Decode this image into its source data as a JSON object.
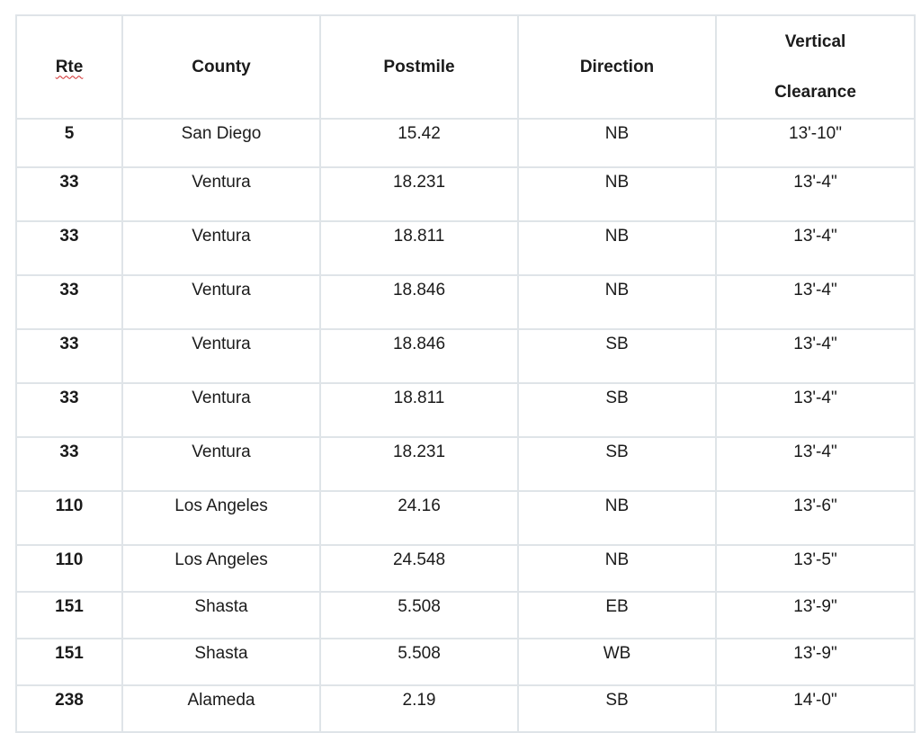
{
  "table": {
    "headers": {
      "rte": "Rte",
      "county": "County",
      "postmile": "Postmile",
      "direction": "Direction",
      "clearance_line1": "Vertical",
      "clearance_line2": "Clearance"
    },
    "rows": [
      {
        "rte": "5",
        "county": "San Diego",
        "postmile": "15.42",
        "direction": "NB",
        "clearance": "13'-10\""
      },
      {
        "rte": "33",
        "county": "Ventura",
        "postmile": "18.231",
        "direction": "NB",
        "clearance": "13'-4\""
      },
      {
        "rte": "33",
        "county": "Ventura",
        "postmile": "18.811",
        "direction": "NB",
        "clearance": "13'-4\""
      },
      {
        "rte": "33",
        "county": "Ventura",
        "postmile": "18.846",
        "direction": "NB",
        "clearance": "13'-4\""
      },
      {
        "rte": "33",
        "county": "Ventura",
        "postmile": "18.846",
        "direction": "SB",
        "clearance": "13'-4\""
      },
      {
        "rte": "33",
        "county": "Ventura",
        "postmile": "18.811",
        "direction": "SB",
        "clearance": "13'-4\""
      },
      {
        "rte": "33",
        "county": "Ventura",
        "postmile": "18.231",
        "direction": "SB",
        "clearance": "13'-4\""
      },
      {
        "rte": "110",
        "county": "Los Angeles",
        "postmile": "24.16",
        "direction": "NB",
        "clearance": "13'-6\""
      },
      {
        "rte": "110",
        "county": "Los Angeles",
        "postmile": "24.548",
        "direction": "NB",
        "clearance": "13'-5\""
      },
      {
        "rte": "151",
        "county": "Shasta",
        "postmile": "5.508",
        "direction": "EB",
        "clearance": "13'-9\""
      },
      {
        "rte": "151",
        "county": "Shasta",
        "postmile": "5.508",
        "direction": "WB",
        "clearance": "13'-9\""
      },
      {
        "rte": "238",
        "county": "Alameda",
        "postmile": "2.19",
        "direction": "SB",
        "clearance": "14'-0\""
      }
    ]
  }
}
